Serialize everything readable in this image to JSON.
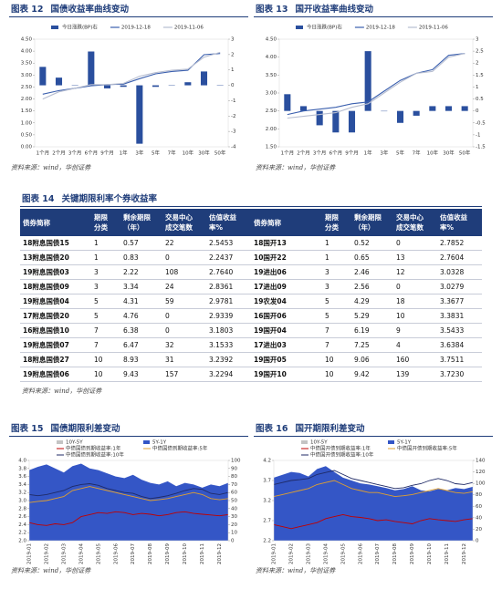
{
  "chart_data": [
    {
      "type": "combo",
      "label": "图表 12",
      "title": "国债收益率曲线变动",
      "source": "资料来源：wind，华创证券",
      "categories": [
        "1个月",
        "2个月",
        "3个月",
        "6个月",
        "9个月",
        "1年",
        "3年",
        "5年",
        "7年",
        "10年",
        "30年",
        "50年"
      ],
      "ylim": [
        0,
        4.5
      ],
      "yticks": [
        {
          "value": 0,
          "label": "0.00"
        },
        {
          "value": 0.5,
          "label": "0.50"
        },
        {
          "value": 1,
          "label": "1.00"
        },
        {
          "value": 1.5,
          "label": "1.50"
        },
        {
          "value": 2,
          "label": "2.00"
        },
        {
          "value": 2.5,
          "label": "2.50"
        },
        {
          "value": 3,
          "label": "3.00"
        },
        {
          "value": 3.5,
          "label": "3.50"
        },
        {
          "value": 4,
          "label": "4.00"
        },
        {
          "value": 4.5,
          "label": "4.50"
        }
      ],
      "y2lim": [
        -4,
        3
      ],
      "y2ticks": [
        -4,
        -3,
        -2,
        -1,
        0,
        1,
        2,
        3
      ],
      "series": [
        {
          "name": "今日涨跌(BP)右",
          "kind": "bar",
          "axis": "y2",
          "color": "#2a4f9e",
          "values": [
            1.2,
            0.5,
            0,
            2.2,
            -0.2,
            -0.1,
            -3.8,
            -0.1,
            0,
            0.2,
            0.9,
            0
          ]
        },
        {
          "name": "2019-12-18",
          "kind": "line",
          "color": "#3a5fae",
          "values": [
            2.2,
            2.35,
            2.45,
            2.55,
            2.6,
            2.62,
            2.85,
            3.05,
            3.15,
            3.2,
            3.85,
            3.9
          ]
        },
        {
          "name": "2019-11-06",
          "kind": "line",
          "color": "#b6bdd0",
          "values": [
            2.0,
            2.3,
            2.45,
            2.6,
            2.6,
            2.65,
            2.95,
            3.1,
            3.2,
            3.25,
            3.75,
            3.95
          ]
        }
      ]
    },
    {
      "type": "combo",
      "label": "图表 13",
      "title": "国开收益率曲线变动",
      "source": "资料来源：wind，华创证券",
      "categories": [
        "1个月",
        "2个月",
        "3个月",
        "6个月",
        "9个月",
        "1年",
        "3年",
        "5年",
        "7年",
        "10年",
        "30年",
        "50年"
      ],
      "ylim": [
        1.5,
        4.5
      ],
      "yticks": [
        {
          "value": 1.5,
          "label": "1.50"
        },
        {
          "value": 2,
          "label": "2.00"
        },
        {
          "value": 2.5,
          "label": "2.50"
        },
        {
          "value": 3,
          "label": "3.00"
        },
        {
          "value": 3.5,
          "label": "3.50"
        },
        {
          "value": 4,
          "label": "4.00"
        },
        {
          "value": 4.5,
          "label": "4.50"
        }
      ],
      "y2lim": [
        -1.5,
        3
      ],
      "y2ticks": [
        -1.5,
        -1,
        -0.5,
        0,
        0.5,
        1,
        1.5,
        2,
        2.5,
        3
      ],
      "series": [
        {
          "name": "今日涨跌(BP)右",
          "kind": "bar",
          "axis": "y2",
          "color": "#2a4f9e",
          "values": [
            0.7,
            0.2,
            -0.6,
            -0.9,
            -0.9,
            2.5,
            0,
            -0.5,
            -0.2,
            0.2,
            0.2,
            0.2
          ]
        },
        {
          "name": "2019-12-18",
          "kind": "line",
          "color": "#3a5fae",
          "values": [
            2.4,
            2.5,
            2.55,
            2.6,
            2.7,
            2.75,
            3.05,
            3.35,
            3.55,
            3.65,
            4.05,
            4.1
          ]
        },
        {
          "name": "2019-11-06",
          "kind": "line",
          "color": "#b6bdd0",
          "values": [
            2.3,
            2.35,
            2.4,
            2.45,
            2.6,
            2.7,
            3.0,
            3.3,
            3.55,
            3.6,
            4.0,
            4.1
          ]
        }
      ]
    },
    {
      "type": "area",
      "label": "图表 15",
      "title": "国债期限利差变动",
      "source": "资料来源：wind，华创证券",
      "categories": [
        "2019-01",
        null,
        "2019-02",
        null,
        "2019-03",
        null,
        "2019-04",
        null,
        "2019-05",
        null,
        "2019-06",
        null,
        "2019-07",
        null,
        "2019-08",
        null,
        "2019-09",
        null,
        "2019-10",
        null,
        "2019-11",
        null,
        "2019-12",
        null
      ],
      "ylim": [
        2,
        4
      ],
      "yticks": [
        {
          "value": 2,
          "label": "2.0"
        },
        2.2,
        2.4,
        2.6,
        2.8,
        {
          "value": 3,
          "label": "3.0"
        },
        3.2,
        3.4,
        3.6,
        3.8,
        {
          "value": 4,
          "label": "4.0"
        }
      ],
      "y2lim": [
        0,
        100
      ],
      "y2ticks": [
        0,
        10,
        20,
        30,
        40,
        50,
        60,
        70,
        80,
        90,
        100
      ],
      "series": [
        {
          "name": "10Y-5Y",
          "kind": "area",
          "axis": "y2",
          "color": "#c4c4c4",
          "values": [
            20,
            18,
            22,
            25,
            24,
            20,
            18,
            22,
            26,
            28,
            30,
            27,
            24,
            22,
            25,
            28,
            30,
            26,
            24,
            22,
            26,
            28,
            27,
            25
          ]
        },
        {
          "name": "5Y-1Y",
          "kind": "area",
          "axis": "y2",
          "color": "#3456c6",
          "values": [
            88,
            92,
            95,
            90,
            85,
            93,
            96,
            90,
            88,
            84,
            80,
            78,
            82,
            76,
            72,
            70,
            74,
            68,
            72,
            70,
            66,
            70,
            68,
            72
          ]
        },
        {
          "name": "中债国债到期收益率:1年",
          "kind": "line",
          "color": "#c00000",
          "values": [
            2.45,
            2.4,
            2.38,
            2.42,
            2.4,
            2.45,
            2.6,
            2.65,
            2.7,
            2.68,
            2.72,
            2.7,
            2.65,
            2.68,
            2.66,
            2.62,
            2.65,
            2.7,
            2.72,
            2.68,
            2.66,
            2.64,
            2.62,
            2.65
          ]
        },
        {
          "name": "中债国债到期收益率:5年",
          "kind": "line",
          "color": "#e0a030",
          "values": [
            2.95,
            2.98,
            3.0,
            3.05,
            3.1,
            3.25,
            3.3,
            3.35,
            3.3,
            3.25,
            3.2,
            3.15,
            3.1,
            3.05,
            3.0,
            3.02,
            3.05,
            3.1,
            3.15,
            3.2,
            3.15,
            3.05,
            3.02,
            3.05
          ]
        },
        {
          "name": "中债国债到期收益率:10年",
          "kind": "line",
          "color": "#1f2a66",
          "values": [
            3.15,
            3.12,
            3.15,
            3.2,
            3.25,
            3.35,
            3.4,
            3.42,
            3.38,
            3.3,
            3.25,
            3.2,
            3.18,
            3.1,
            3.05,
            3.08,
            3.12,
            3.18,
            3.25,
            3.3,
            3.28,
            3.18,
            3.15,
            3.2
          ]
        }
      ]
    },
    {
      "type": "area",
      "label": "图表 16",
      "title": "国开期限利差变动",
      "source": "资料来源：wind，华创证券",
      "categories": [
        "2019-01",
        null,
        "2019-02",
        null,
        "2019-03",
        null,
        "2019-04",
        null,
        "2019-05",
        null,
        "2019-06",
        null,
        "2019-07",
        null,
        "2019-08",
        null,
        "2019-09",
        null,
        "2019-10",
        null,
        "2019-11",
        null,
        "2019-12",
        null
      ],
      "ylim": [
        2.2,
        4.2
      ],
      "yticks": [
        2.2,
        2.7,
        3.2,
        3.7,
        4.2
      ],
      "y2lim": [
        0,
        140
      ],
      "y2ticks": [
        0,
        20,
        40,
        60,
        80,
        100,
        120,
        140
      ],
      "series": [
        {
          "name": "10Y-5Y",
          "kind": "area",
          "axis": "y2",
          "color": "#c4c4c4",
          "values": [
            30,
            28,
            32,
            35,
            38,
            34,
            30,
            36,
            40,
            42,
            38,
            36,
            34,
            38,
            40,
            42,
            44,
            40,
            38,
            36,
            40,
            42,
            44,
            40
          ]
        },
        {
          "name": "5Y-1Y",
          "kind": "area",
          "axis": "y2",
          "color": "#3456c6",
          "values": [
            110,
            115,
            120,
            118,
            112,
            125,
            130,
            120,
            110,
            105,
            100,
            98,
            95,
            92,
            88,
            90,
            95,
            88,
            86,
            90,
            88,
            92,
            90,
            94
          ]
        },
        {
          "name": "中债国开债到期收益率:1年",
          "kind": "line",
          "color": "#c00000",
          "values": [
            2.6,
            2.55,
            2.5,
            2.55,
            2.6,
            2.65,
            2.75,
            2.8,
            2.85,
            2.8,
            2.78,
            2.75,
            2.7,
            2.72,
            2.68,
            2.65,
            2.62,
            2.7,
            2.75,
            2.72,
            2.7,
            2.68,
            2.72,
            2.75
          ]
        },
        {
          "name": "中债国开债到期收益率:5年",
          "kind": "line",
          "color": "#e0a030",
          "values": [
            3.3,
            3.35,
            3.4,
            3.45,
            3.5,
            3.6,
            3.65,
            3.7,
            3.6,
            3.5,
            3.45,
            3.4,
            3.4,
            3.35,
            3.3,
            3.32,
            3.35,
            3.4,
            3.45,
            3.5,
            3.45,
            3.4,
            3.38,
            3.42
          ]
        },
        {
          "name": "中债国开债到期收益率:10年",
          "kind": "line",
          "color": "#1f2a66",
          "values": [
            3.6,
            3.65,
            3.7,
            3.72,
            3.75,
            3.85,
            3.9,
            3.95,
            3.85,
            3.75,
            3.7,
            3.65,
            3.6,
            3.55,
            3.5,
            3.52,
            3.58,
            3.62,
            3.7,
            3.75,
            3.7,
            3.62,
            3.6,
            3.65
          ]
        }
      ]
    }
  ],
  "table": {
    "label": "图表 14",
    "title": "关键期限利率个券收益率",
    "source": "资料来源：wind，华创证券",
    "header": [
      "债券简称",
      "期限\n分类",
      "剩余期限\n（年）",
      "交易中心\n成交笔数",
      "估值收益\n率%",
      "债券简称",
      "期限\n分类",
      "剩余期限\n（年）",
      "交易中心\n成交笔数",
      "估值收益\n率%"
    ],
    "rows": [
      [
        "18附息国债15",
        "1",
        "0.57",
        "22",
        "2.5453",
        "18国开13",
        "1",
        "0.52",
        "0",
        "2.7852"
      ],
      [
        "13附息国债20",
        "1",
        "0.83",
        "0",
        "2.2437",
        "10国开22",
        "1",
        "0.65",
        "13",
        "2.7604"
      ],
      [
        "19附息国债03",
        "3",
        "2.22",
        "108",
        "2.7640",
        "19进出06",
        "3",
        "2.46",
        "12",
        "3.0328"
      ],
      [
        "18附息国债09",
        "3",
        "3.34",
        "24",
        "2.8361",
        "17进出09",
        "3",
        "2.56",
        "0",
        "3.0279"
      ],
      [
        "19附息国债04",
        "5",
        "4.31",
        "59",
        "2.9781",
        "19农发04",
        "5",
        "4.29",
        "18",
        "3.3677"
      ],
      [
        "17附息国债20",
        "5",
        "4.76",
        "0",
        "2.9339",
        "16国开06",
        "5",
        "5.29",
        "10",
        "3.3831"
      ],
      [
        "16附息国债10",
        "7",
        "6.38",
        "0",
        "3.1803",
        "19国开04",
        "7",
        "6.19",
        "9",
        "3.5433"
      ],
      [
        "19附息国债07",
        "7",
        "6.47",
        "32",
        "3.1533",
        "17进出03",
        "7",
        "7.25",
        "4",
        "3.6384"
      ],
      [
        "18附息国债27",
        "10",
        "8.93",
        "31",
        "3.2392",
        "19国开05",
        "10",
        "9.06",
        "160",
        "3.7511"
      ],
      [
        "19附息国债06",
        "10",
        "9.43",
        "157",
        "3.2294",
        "19国开10",
        "10",
        "9.42",
        "139",
        "3.7230"
      ]
    ]
  }
}
